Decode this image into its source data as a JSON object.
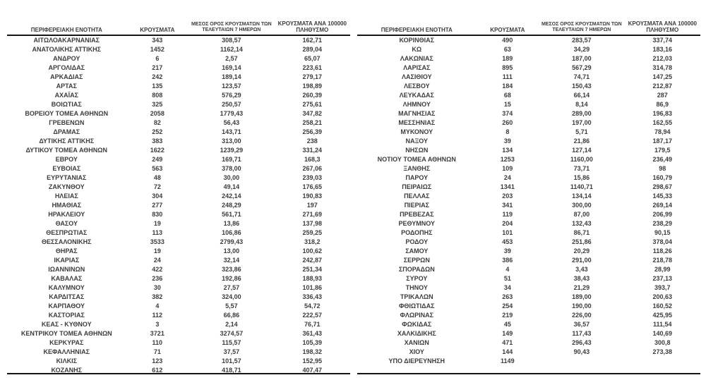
{
  "colors": {
    "background": "#ffffff",
    "text": "#3c3c3c",
    "line": "#161616"
  },
  "table_headers": {
    "region": "ΠΕΡΙΦΕΡΕΙΑΚΗ ΕΝΟΤΗΤΑ",
    "cases": "ΚΡΟΥΣΜΑΤΑ",
    "avg7day": "ΜΕΣΟΣ ΟΡΟΣ ΚΡΟΥΣΜΑΤΩΝ ΤΩΝ ΤΕΛΕΥΤΑΙΩΝ 7 ΗΜΕΡΩΝ",
    "per100k": "ΚΡΟΥΣΜΑΤΑ ΑΝΑ 100000 ΠΛΗΘΥΣΜΟ"
  },
  "left_table": {
    "rows": [
      [
        "ΑΙΤΩΛΟΑΚΑΡΝΑΝΙΑΣ",
        "343",
        "308,57",
        "162,71"
      ],
      [
        "ΑΝΑΤΟΛΙΚΗΣ ΑΤΤΙΚΗΣ",
        "1452",
        "1162,14",
        "289,04"
      ],
      [
        "ΑΝΔΡΟΥ",
        "6",
        "2,57",
        "65,07"
      ],
      [
        "ΑΡΓΟΛΙΔΑΣ",
        "217",
        "169,14",
        "223,61"
      ],
      [
        "ΑΡΚΑΔΙΑΣ",
        "242",
        "189,14",
        "279,17"
      ],
      [
        "ΑΡΤΑΣ",
        "135",
        "123,57",
        "198,89"
      ],
      [
        "ΑΧΑΪΑΣ",
        "808",
        "576,29",
        "260,39"
      ],
      [
        "ΒΟΙΩΤΙΑΣ",
        "325",
        "250,57",
        "275,61"
      ],
      [
        "ΒΟΡΕΙΟΥ ΤΟΜΕΑ ΑΘΗΝΩΝ",
        "2058",
        "1779,43",
        "347,82"
      ],
      [
        "ΓΡΕΒΕΝΩΝ",
        "82",
        "56,43",
        "258,21"
      ],
      [
        "ΔΡΑΜΑΣ",
        "252",
        "143,71",
        "256,39"
      ],
      [
        "ΔΥΤΙΚΗΣ ΑΤΤΙΚΗΣ",
        "383",
        "313,00",
        "238"
      ],
      [
        "ΔΥΤΙΚΟΥ ΤΟΜΕΑ ΑΘΗΝΩΝ",
        "1622",
        "1239,29",
        "331,24"
      ],
      [
        "ΕΒΡΟΥ",
        "249",
        "169,71",
        "168,3"
      ],
      [
        "ΕΥΒΟΙΑΣ",
        "563",
        "378,00",
        "267,06"
      ],
      [
        "ΕΥΡΥΤΑΝΙΑΣ",
        "48",
        "30,00",
        "239,03"
      ],
      [
        "ΖΑΚΥΝΘΟΥ",
        "72",
        "49,14",
        "176,65"
      ],
      [
        "ΗΛΕΙΑΣ",
        "304",
        "242,14",
        "190,83"
      ],
      [
        "ΗΜΑΘΙΑΣ",
        "277",
        "248,29",
        "197"
      ],
      [
        "ΗΡΑΚΛΕΙΟΥ",
        "830",
        "561,71",
        "271,69"
      ],
      [
        "ΘΑΣΟΥ",
        "19",
        "13,86",
        "137,98"
      ],
      [
        "ΘΕΣΠΡΩΤΙΑΣ",
        "113",
        "106,86",
        "259,25"
      ],
      [
        "ΘΕΣΣΑΛΟΝΙΚΗΣ",
        "3533",
        "2799,43",
        "318,2"
      ],
      [
        "ΘΗΡΑΣ",
        "19",
        "13,00",
        "100,62"
      ],
      [
        "ΙΚΑΡΙΑΣ",
        "24",
        "32,14",
        "242,87"
      ],
      [
        "ΙΩΑΝΝΙΝΩΝ",
        "422",
        "323,86",
        "251,34"
      ],
      [
        "ΚΑΒΑΛΑΣ",
        "236",
        "192,86",
        "188,93"
      ],
      [
        "ΚΑΛΥΜΝΟΥ",
        "30",
        "27,57",
        "101,86"
      ],
      [
        "ΚΑΡΔΙΤΣΑΣ",
        "382",
        "324,00",
        "336,43"
      ],
      [
        "ΚΑΡΠΑΘΟΥ",
        "4",
        "5,57",
        "54,72"
      ],
      [
        "ΚΑΣΤΟΡΙΑΣ",
        "112",
        "66,86",
        "222,57"
      ],
      [
        "ΚΕΑΣ - ΚΥΘΝΟΥ",
        "3",
        "2,14",
        "76,71"
      ],
      [
        "ΚΕΝΤΡΙΚΟΥ ΤΟΜΕΑ ΑΘΗΝΩΝ",
        "3721",
        "3274,57",
        "361,43"
      ],
      [
        "ΚΕΡΚΥΡΑΣ",
        "110",
        "115,57",
        "105,39"
      ],
      [
        "ΚΕΦΑΛΛΗΝΙΑΣ",
        "71",
        "37,57",
        "198,32"
      ],
      [
        "ΚΙΛΚΙΣ",
        "123",
        "101,57",
        "152,95"
      ],
      [
        "ΚΟΖΑΝΗΣ",
        "612",
        "418,71",
        "407,47"
      ]
    ]
  },
  "right_table": {
    "rows": [
      [
        "ΚΟΡΙΝΘΙΑΣ",
        "490",
        "283,57",
        "337,74"
      ],
      [
        "ΚΩ",
        "63",
        "34,29",
        "183,16"
      ],
      [
        "ΛΑΚΩΝΙΑΣ",
        "189",
        "187,00",
        "212,03"
      ],
      [
        "ΛΑΡΙΣΑΣ",
        "895",
        "567,29",
        "314,78"
      ],
      [
        "ΛΑΣΙΘΙΟΥ",
        "111",
        "74,71",
        "147,25"
      ],
      [
        "ΛΕΣΒΟΥ",
        "184",
        "150,43",
        "212,87"
      ],
      [
        "ΛΕΥΚΑΔΑΣ",
        "68",
        "66,14",
        "287"
      ],
      [
        "ΛΗΜΝΟΥ",
        "15",
        "8,14",
        "86,9"
      ],
      [
        "ΜΑΓΝΗΣΙΑΣ",
        "374",
        "289,00",
        "196,83"
      ],
      [
        "ΜΕΣΣΗΝΙΑΣ",
        "260",
        "197,00",
        "162,55"
      ],
      [
        "ΜΥΚΟΝΟΥ",
        "8",
        "5,71",
        "78,94"
      ],
      [
        "ΝΑΞΟΥ",
        "39",
        "21,86",
        "187,17"
      ],
      [
        "ΝΗΣΩΝ",
        "134",
        "127,14",
        "179,5"
      ],
      [
        "ΝΟΤΙΟΥ ΤΟΜΕΑ ΑΘΗΝΩΝ",
        "1253",
        "1160,00",
        "236,49"
      ],
      [
        "ΞΑΝΘΗΣ",
        "109",
        "73,71",
        "98"
      ],
      [
        "ΠΑΡΟΥ",
        "24",
        "15,86",
        "160,79"
      ],
      [
        "ΠΕΙΡΑΙΩΣ",
        "1341",
        "1140,71",
        "298,67"
      ],
      [
        "ΠΕΛΛΑΣ",
        "203",
        "134,14",
        "145,33"
      ],
      [
        "ΠΙΕΡΙΑΣ",
        "341",
        "300,00",
        "269,14"
      ],
      [
        "ΠΡΕΒΕΖΑΣ",
        "119",
        "87,00",
        "206,99"
      ],
      [
        "ΡΕΘΥΜΝΟΥ",
        "204",
        "132,43",
        "238,29"
      ],
      [
        "ΡΟΔΟΠΗΣ",
        "101",
        "86,71",
        "90,15"
      ],
      [
        "ΡΟΔΟΥ",
        "453",
        "251,86",
        "378,04"
      ],
      [
        "ΣΑΜΟΥ",
        "39",
        "20,29",
        "118,26"
      ],
      [
        "ΣΕΡΡΩΝ",
        "386",
        "291,00",
        "218,78"
      ],
      [
        "ΣΠΟΡΑΔΩΝ",
        "4",
        "3,43",
        "28,99"
      ],
      [
        "ΣΥΡΟΥ",
        "51",
        "38,43",
        "237,13"
      ],
      [
        "ΤΗΝΟΥ",
        "34",
        "21,29",
        "393,7"
      ],
      [
        "ΤΡΙΚΑΛΩΝ",
        "263",
        "189,00",
        "200,63"
      ],
      [
        "ΦΘΙΩΤΙΔΑΣ",
        "254",
        "190,00",
        "160,52"
      ],
      [
        "ΦΛΩΡΙΝΑΣ",
        "219",
        "226,00",
        "425,95"
      ],
      [
        "ΦΩΚΙΔΑΣ",
        "45",
        "36,57",
        "111,54"
      ],
      [
        "ΧΑΛΚΙΔΙΚΗΣ",
        "149",
        "117,43",
        "140,69"
      ],
      [
        "ΧΑΝΙΩΝ",
        "471",
        "296,43",
        "300,8"
      ],
      [
        "ΧΙΟΥ",
        "144",
        "90,43",
        "273,38"
      ],
      [
        "ΥΠΟ ΔΙΕΡΕΥΝΗΣΗ",
        "1149",
        "",
        ""
      ]
    ]
  }
}
